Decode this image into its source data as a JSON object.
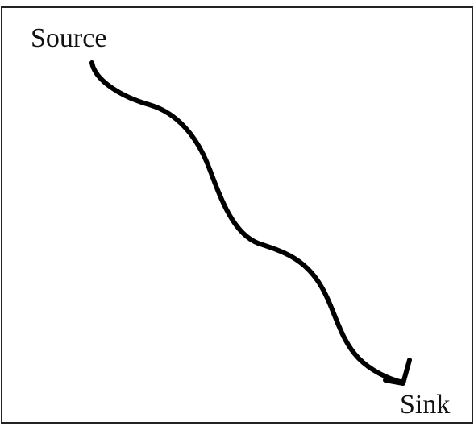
{
  "nodes": [
    {
      "label": "Source"
    },
    {
      "label": "Sink"
    }
  ]
}
